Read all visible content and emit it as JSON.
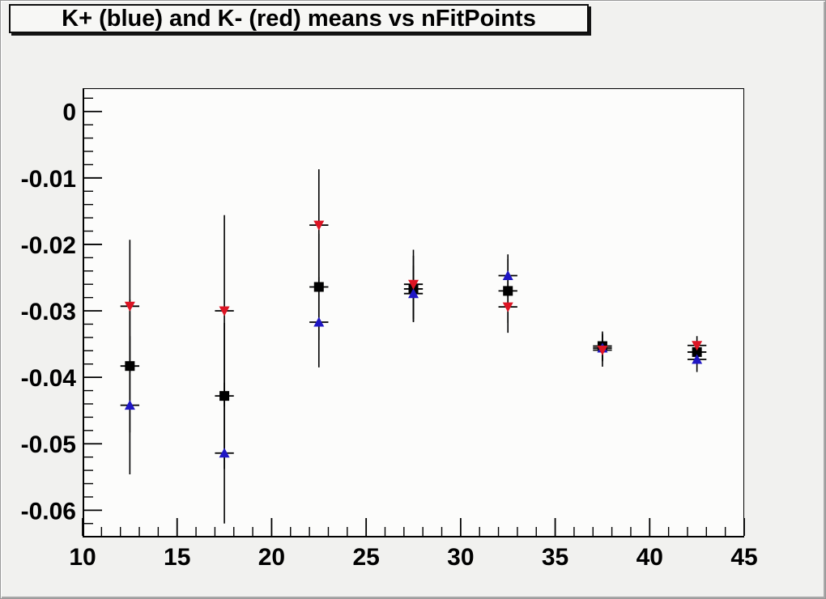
{
  "title": "K+ (blue) and K- (red) means vs nFitPoints",
  "colors": {
    "canvas_bg": "#f1f1ef",
    "frame_bg": "#fcfcfb",
    "axis": "#000000",
    "error_bar": "#000000",
    "kplus_blue": "#1f16c4",
    "kminus_red": "#dc1423",
    "black_series": "#000000",
    "title_bg": "#f7f7f5"
  },
  "chart_data": {
    "type": "scatter",
    "title": "K+ (blue) and K- (red) means vs nFitPoints",
    "xlabel": "",
    "ylabel": "",
    "xlim": [
      10,
      45
    ],
    "ylim": [
      -0.0641,
      0.0035
    ],
    "grid": false,
    "legend": "none (colors named in title)",
    "x_major_ticks": [
      10,
      15,
      20,
      25,
      30,
      35,
      40,
      45
    ],
    "x_tick_labels": [
      "10",
      "15",
      "20",
      "25",
      "30",
      "35",
      "40",
      "45"
    ],
    "x_minor_step": 1,
    "y_major_ticks": [
      0,
      -0.01,
      -0.02,
      -0.03,
      -0.04,
      -0.05,
      -0.06
    ],
    "y_tick_labels": [
      "0",
      "-0.01",
      "-0.02",
      "-0.03",
      "-0.04",
      "-0.05",
      "-0.06"
    ],
    "y_minor_step": 0.002,
    "xerr": 0.5,
    "series": [
      {
        "name": "black-squares-mean",
        "marker": "square",
        "color": "#000000",
        "points": [
          {
            "x": 12.5,
            "y": -0.0383,
            "ey": 0.01
          },
          {
            "x": 17.5,
            "y": -0.0428,
            "ey": 0.011
          },
          {
            "x": 22.5,
            "y": -0.0264,
            "ey": 0.008
          },
          {
            "x": 27.5,
            "y": -0.0267,
            "ey": 0.005
          },
          {
            "x": 32.5,
            "y": -0.027,
            "ey": 0.0048
          },
          {
            "x": 37.5,
            "y": -0.0353,
            "ey": 0.0022
          },
          {
            "x": 42.5,
            "y": -0.0362,
            "ey": 0.0016
          }
        ]
      },
      {
        "name": "K+ (blue)",
        "marker": "triangle-up",
        "color": "#1f16c4",
        "points": [
          {
            "x": 12.5,
            "y": -0.0442,
            "ey": 0.0104
          },
          {
            "x": 17.5,
            "y": -0.0514,
            "ey": 0.0106
          },
          {
            "x": 22.5,
            "y": -0.0317,
            "ey": 0.0068
          },
          {
            "x": 27.5,
            "y": -0.0274,
            "ey": 0.0042
          },
          {
            "x": 32.5,
            "y": -0.0247,
            "ey": 0.0032
          },
          {
            "x": 37.5,
            "y": -0.0356,
            "ey": 0.002
          },
          {
            "x": 42.5,
            "y": -0.0373,
            "ey": 0.0019
          }
        ]
      },
      {
        "name": "K- (red)",
        "marker": "triangle-down",
        "color": "#dc1423",
        "points": [
          {
            "x": 12.5,
            "y": -0.0293,
            "ey": 0.01
          },
          {
            "x": 17.5,
            "y": -0.03,
            "ey": 0.0144
          },
          {
            "x": 22.5,
            "y": -0.0171,
            "ey": 0.0084
          },
          {
            "x": 27.5,
            "y": -0.026,
            "ey": 0.0052
          },
          {
            "x": 32.5,
            "y": -0.0294,
            "ey": 0.0039
          },
          {
            "x": 37.5,
            "y": -0.0359,
            "ey": 0.0025
          },
          {
            "x": 42.5,
            "y": -0.0352,
            "ey": 0.0014
          }
        ]
      }
    ]
  }
}
